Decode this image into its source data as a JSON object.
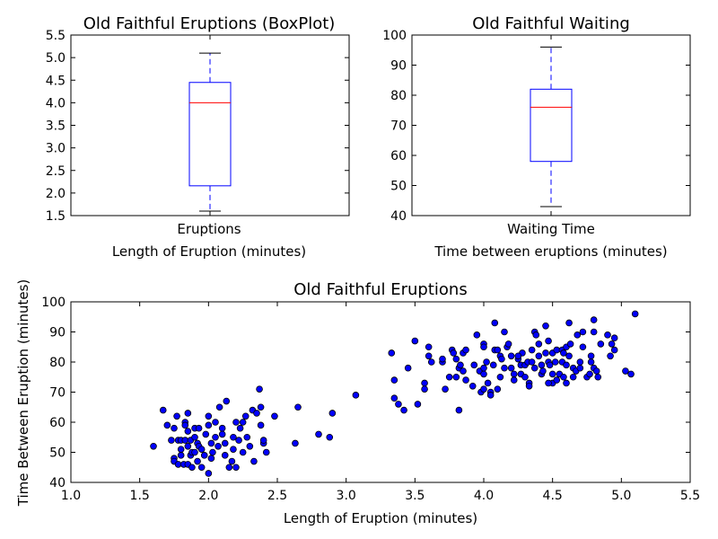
{
  "chart_data": [
    {
      "type": "box",
      "title": "Old Faithful Eruptions (BoxPlot)",
      "xlabel": "Length of Eruption (minutes)",
      "category": "Eruptions",
      "ylim": [
        1.5,
        5.5
      ],
      "yticks": [
        "1.5",
        "2.0",
        "2.5",
        "3.0",
        "3.5",
        "4.0",
        "4.5",
        "5.0",
        "5.5"
      ],
      "box": {
        "whisker_low": 1.6,
        "q1": 2.16,
        "median": 4.0,
        "q3": 4.45,
        "whisker_high": 5.1
      },
      "colors": {
        "box": "#0000ff",
        "median": "#ff0000",
        "caps": "#000000"
      }
    },
    {
      "type": "box",
      "title": "Old Faithful Waiting",
      "xlabel": "Time between eruptions (minutes)",
      "category": "Waiting Time",
      "ylim": [
        40,
        100
      ],
      "yticks": [
        "40",
        "50",
        "60",
        "70",
        "80",
        "90",
        "100"
      ],
      "box": {
        "whisker_low": 43,
        "q1": 58,
        "median": 76,
        "q3": 82,
        "whisker_high": 96
      },
      "colors": {
        "box": "#0000ff",
        "median": "#ff0000",
        "caps": "#000000"
      }
    },
    {
      "type": "scatter",
      "title": "Old Faithful Eruptions",
      "xlabel": "Length of Eruption (minutes)",
      "ylabel": "Time Between Eruption (minutes)",
      "xlim": [
        1.0,
        5.5
      ],
      "ylim": [
        40,
        100
      ],
      "xticks": [
        "1.0",
        "1.5",
        "2.0",
        "2.5",
        "3.0",
        "3.5",
        "4.0",
        "4.5",
        "5.0",
        "5.5"
      ],
      "yticks": [
        "40",
        "50",
        "60",
        "70",
        "80",
        "90",
        "100"
      ],
      "colors": {
        "marker": "#0000ff",
        "edge": "#000000"
      },
      "points": [
        [
          1.6,
          52
        ],
        [
          1.67,
          64
        ],
        [
          1.7,
          59
        ],
        [
          1.73,
          54
        ],
        [
          1.75,
          58
        ],
        [
          1.75,
          48
        ],
        [
          1.75,
          47
        ],
        [
          1.77,
          62
        ],
        [
          1.78,
          54
        ],
        [
          1.78,
          46
        ],
        [
          1.8,
          51
        ],
        [
          1.8,
          49
        ],
        [
          1.8,
          54
        ],
        [
          1.82,
          46
        ],
        [
          1.83,
          60
        ],
        [
          1.83,
          54
        ],
        [
          1.83,
          59
        ],
        [
          1.85,
          57
        ],
        [
          1.85,
          52
        ],
        [
          1.85,
          46
        ],
        [
          1.85,
          63
        ],
        [
          1.87,
          54
        ],
        [
          1.87,
          49
        ],
        [
          1.88,
          50
        ],
        [
          1.88,
          45
        ],
        [
          1.9,
          55
        ],
        [
          1.9,
          50
        ],
        [
          1.9,
          58
        ],
        [
          1.92,
          47
        ],
        [
          1.92,
          53
        ],
        [
          1.93,
          52
        ],
        [
          1.93,
          58
        ],
        [
          1.95,
          45
        ],
        [
          1.95,
          51
        ],
        [
          1.97,
          49
        ],
        [
          1.98,
          56
        ],
        [
          2.0,
          59
        ],
        [
          2.0,
          62
        ],
        [
          2.0,
          43
        ],
        [
          2.02,
          53
        ],
        [
          2.02,
          48
        ],
        [
          2.03,
          50
        ],
        [
          2.05,
          60
        ],
        [
          2.05,
          55
        ],
        [
          2.07,
          52
        ],
        [
          2.08,
          65
        ],
        [
          2.1,
          58
        ],
        [
          2.1,
          56
        ],
        [
          2.12,
          49
        ],
        [
          2.12,
          53
        ],
        [
          2.13,
          67
        ],
        [
          2.15,
          45
        ],
        [
          2.17,
          47
        ],
        [
          2.18,
          55
        ],
        [
          2.18,
          51
        ],
        [
          2.2,
          60
        ],
        [
          2.2,
          45
        ],
        [
          2.22,
          54
        ],
        [
          2.23,
          58
        ],
        [
          2.25,
          60
        ],
        [
          2.25,
          50
        ],
        [
          2.27,
          62
        ],
        [
          2.28,
          55
        ],
        [
          2.3,
          52
        ],
        [
          2.32,
          64
        ],
        [
          2.33,
          47
        ],
        [
          2.35,
          63
        ],
        [
          2.37,
          71
        ],
        [
          2.38,
          59
        ],
        [
          2.38,
          65
        ],
        [
          2.4,
          53
        ],
        [
          2.4,
          54
        ],
        [
          2.42,
          50
        ],
        [
          2.48,
          62
        ],
        [
          2.63,
          53
        ],
        [
          2.65,
          65
        ],
        [
          2.8,
          56
        ],
        [
          2.88,
          55
        ],
        [
          2.9,
          63
        ],
        [
          3.07,
          69
        ],
        [
          3.33,
          83
        ],
        [
          3.35,
          68
        ],
        [
          3.35,
          74
        ],
        [
          3.38,
          66
        ],
        [
          3.42,
          64
        ],
        [
          3.45,
          78
        ],
        [
          3.5,
          87
        ],
        [
          3.52,
          66
        ],
        [
          3.57,
          73
        ],
        [
          3.57,
          71
        ],
        [
          3.6,
          85
        ],
        [
          3.6,
          82
        ],
        [
          3.62,
          80
        ],
        [
          3.7,
          80
        ],
        [
          3.7,
          81
        ],
        [
          3.72,
          71
        ],
        [
          3.75,
          75
        ],
        [
          3.77,
          84
        ],
        [
          3.78,
          83
        ],
        [
          3.8,
          81
        ],
        [
          3.8,
          75
        ],
        [
          3.82,
          64
        ],
        [
          3.82,
          78
        ],
        [
          3.83,
          79
        ],
        [
          3.85,
          83
        ],
        [
          3.85,
          77
        ],
        [
          3.87,
          84
        ],
        [
          3.87,
          74
        ],
        [
          3.92,
          72
        ],
        [
          3.93,
          79
        ],
        [
          3.95,
          89
        ],
        [
          3.97,
          77
        ],
        [
          3.98,
          70
        ],
        [
          4.0,
          86
        ],
        [
          4.0,
          85
        ],
        [
          4.0,
          76
        ],
        [
          4.0,
          78
        ],
        [
          4.0,
          71
        ],
        [
          4.02,
          80
        ],
        [
          4.03,
          73
        ],
        [
          4.05,
          70
        ],
        [
          4.05,
          69
        ],
        [
          4.07,
          79
        ],
        [
          4.08,
          93
        ],
        [
          4.08,
          84
        ],
        [
          4.1,
          84
        ],
        [
          4.1,
          71
        ],
        [
          4.12,
          75
        ],
        [
          4.12,
          82
        ],
        [
          4.13,
          81
        ],
        [
          4.15,
          90
        ],
        [
          4.15,
          78
        ],
        [
          4.17,
          85
        ],
        [
          4.18,
          86
        ],
        [
          4.2,
          82
        ],
        [
          4.2,
          78
        ],
        [
          4.22,
          76
        ],
        [
          4.22,
          74
        ],
        [
          4.25,
          81
        ],
        [
          4.27,
          76
        ],
        [
          4.27,
          79
        ],
        [
          4.28,
          83
        ],
        [
          4.3,
          79
        ],
        [
          4.3,
          75
        ],
        [
          4.32,
          80
        ],
        [
          4.33,
          73
        ],
        [
          4.33,
          72
        ],
        [
          4.35,
          84
        ],
        [
          4.37,
          78
        ],
        [
          4.37,
          90
        ],
        [
          4.38,
          89
        ],
        [
          4.4,
          82
        ],
        [
          4.4,
          86
        ],
        [
          4.42,
          76
        ],
        [
          4.42,
          79
        ],
        [
          4.43,
          77
        ],
        [
          4.45,
          92
        ],
        [
          4.45,
          83
        ],
        [
          4.47,
          80
        ],
        [
          4.47,
          87
        ],
        [
          4.48,
          79
        ],
        [
          4.5,
          83
        ],
        [
          4.5,
          76
        ],
        [
          4.5,
          73
        ],
        [
          4.52,
          80
        ],
        [
          4.53,
          74
        ],
        [
          4.53,
          84
        ],
        [
          4.55,
          76
        ],
        [
          4.57,
          80
        ],
        [
          4.57,
          84
        ],
        [
          4.58,
          83
        ],
        [
          4.6,
          73
        ],
        [
          4.6,
          85
        ],
        [
          4.6,
          79
        ],
        [
          4.62,
          93
        ],
        [
          4.62,
          82
        ],
        [
          4.63,
          86
        ],
        [
          4.65,
          78
        ],
        [
          4.65,
          75
        ],
        [
          4.67,
          77
        ],
        [
          4.68,
          89
        ],
        [
          4.7,
          78
        ],
        [
          4.7,
          80
        ],
        [
          4.72,
          85
        ],
        [
          4.72,
          90
        ],
        [
          4.75,
          75
        ],
        [
          4.77,
          76
        ],
        [
          4.78,
          80
        ],
        [
          4.78,
          82
        ],
        [
          4.8,
          94
        ],
        [
          4.8,
          90
        ],
        [
          4.8,
          78
        ],
        [
          4.82,
          77
        ],
        [
          4.83,
          75
        ],
        [
          4.85,
          86
        ],
        [
          4.9,
          89
        ],
        [
          4.92,
          82
        ],
        [
          4.93,
          86
        ],
        [
          4.95,
          88
        ],
        [
          5.03,
          77
        ],
        [
          5.07,
          76
        ],
        [
          5.1,
          96
        ],
        [
          4.47,
          73
        ],
        [
          4.25,
          82
        ],
        [
          4.95,
          84
        ],
        [
          4.58,
          75
        ],
        [
          4.35,
          80
        ]
      ]
    }
  ]
}
